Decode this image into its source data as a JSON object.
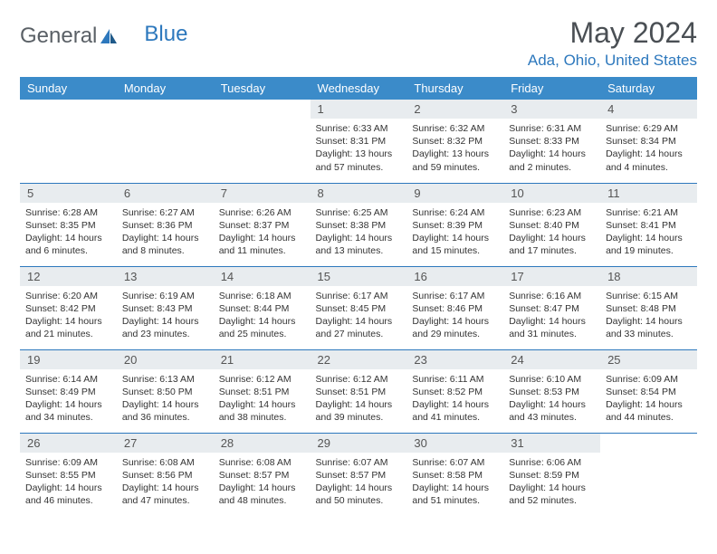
{
  "logo": {
    "text1": "General",
    "text2": "Blue"
  },
  "title": "May 2024",
  "location": "Ada, Ohio, United States",
  "colors": {
    "header_bg": "#3b8bc9",
    "accent": "#2d78bd",
    "daynum_bg": "#e8ecef",
    "text": "#333333",
    "title_text": "#4a4f54"
  },
  "weekdays": [
    "Sunday",
    "Monday",
    "Tuesday",
    "Wednesday",
    "Thursday",
    "Friday",
    "Saturday"
  ],
  "weeks": [
    [
      {
        "n": "",
        "sunrise": "",
        "sunset": "",
        "daylight": ""
      },
      {
        "n": "",
        "sunrise": "",
        "sunset": "",
        "daylight": ""
      },
      {
        "n": "",
        "sunrise": "",
        "sunset": "",
        "daylight": ""
      },
      {
        "n": "1",
        "sunrise": "Sunrise: 6:33 AM",
        "sunset": "Sunset: 8:31 PM",
        "daylight": "Daylight: 13 hours and 57 minutes."
      },
      {
        "n": "2",
        "sunrise": "Sunrise: 6:32 AM",
        "sunset": "Sunset: 8:32 PM",
        "daylight": "Daylight: 13 hours and 59 minutes."
      },
      {
        "n": "3",
        "sunrise": "Sunrise: 6:31 AM",
        "sunset": "Sunset: 8:33 PM",
        "daylight": "Daylight: 14 hours and 2 minutes."
      },
      {
        "n": "4",
        "sunrise": "Sunrise: 6:29 AM",
        "sunset": "Sunset: 8:34 PM",
        "daylight": "Daylight: 14 hours and 4 minutes."
      }
    ],
    [
      {
        "n": "5",
        "sunrise": "Sunrise: 6:28 AM",
        "sunset": "Sunset: 8:35 PM",
        "daylight": "Daylight: 14 hours and 6 minutes."
      },
      {
        "n": "6",
        "sunrise": "Sunrise: 6:27 AM",
        "sunset": "Sunset: 8:36 PM",
        "daylight": "Daylight: 14 hours and 8 minutes."
      },
      {
        "n": "7",
        "sunrise": "Sunrise: 6:26 AM",
        "sunset": "Sunset: 8:37 PM",
        "daylight": "Daylight: 14 hours and 11 minutes."
      },
      {
        "n": "8",
        "sunrise": "Sunrise: 6:25 AM",
        "sunset": "Sunset: 8:38 PM",
        "daylight": "Daylight: 14 hours and 13 minutes."
      },
      {
        "n": "9",
        "sunrise": "Sunrise: 6:24 AM",
        "sunset": "Sunset: 8:39 PM",
        "daylight": "Daylight: 14 hours and 15 minutes."
      },
      {
        "n": "10",
        "sunrise": "Sunrise: 6:23 AM",
        "sunset": "Sunset: 8:40 PM",
        "daylight": "Daylight: 14 hours and 17 minutes."
      },
      {
        "n": "11",
        "sunrise": "Sunrise: 6:21 AM",
        "sunset": "Sunset: 8:41 PM",
        "daylight": "Daylight: 14 hours and 19 minutes."
      }
    ],
    [
      {
        "n": "12",
        "sunrise": "Sunrise: 6:20 AM",
        "sunset": "Sunset: 8:42 PM",
        "daylight": "Daylight: 14 hours and 21 minutes."
      },
      {
        "n": "13",
        "sunrise": "Sunrise: 6:19 AM",
        "sunset": "Sunset: 8:43 PM",
        "daylight": "Daylight: 14 hours and 23 minutes."
      },
      {
        "n": "14",
        "sunrise": "Sunrise: 6:18 AM",
        "sunset": "Sunset: 8:44 PM",
        "daylight": "Daylight: 14 hours and 25 minutes."
      },
      {
        "n": "15",
        "sunrise": "Sunrise: 6:17 AM",
        "sunset": "Sunset: 8:45 PM",
        "daylight": "Daylight: 14 hours and 27 minutes."
      },
      {
        "n": "16",
        "sunrise": "Sunrise: 6:17 AM",
        "sunset": "Sunset: 8:46 PM",
        "daylight": "Daylight: 14 hours and 29 minutes."
      },
      {
        "n": "17",
        "sunrise": "Sunrise: 6:16 AM",
        "sunset": "Sunset: 8:47 PM",
        "daylight": "Daylight: 14 hours and 31 minutes."
      },
      {
        "n": "18",
        "sunrise": "Sunrise: 6:15 AM",
        "sunset": "Sunset: 8:48 PM",
        "daylight": "Daylight: 14 hours and 33 minutes."
      }
    ],
    [
      {
        "n": "19",
        "sunrise": "Sunrise: 6:14 AM",
        "sunset": "Sunset: 8:49 PM",
        "daylight": "Daylight: 14 hours and 34 minutes."
      },
      {
        "n": "20",
        "sunrise": "Sunrise: 6:13 AM",
        "sunset": "Sunset: 8:50 PM",
        "daylight": "Daylight: 14 hours and 36 minutes."
      },
      {
        "n": "21",
        "sunrise": "Sunrise: 6:12 AM",
        "sunset": "Sunset: 8:51 PM",
        "daylight": "Daylight: 14 hours and 38 minutes."
      },
      {
        "n": "22",
        "sunrise": "Sunrise: 6:12 AM",
        "sunset": "Sunset: 8:51 PM",
        "daylight": "Daylight: 14 hours and 39 minutes."
      },
      {
        "n": "23",
        "sunrise": "Sunrise: 6:11 AM",
        "sunset": "Sunset: 8:52 PM",
        "daylight": "Daylight: 14 hours and 41 minutes."
      },
      {
        "n": "24",
        "sunrise": "Sunrise: 6:10 AM",
        "sunset": "Sunset: 8:53 PM",
        "daylight": "Daylight: 14 hours and 43 minutes."
      },
      {
        "n": "25",
        "sunrise": "Sunrise: 6:09 AM",
        "sunset": "Sunset: 8:54 PM",
        "daylight": "Daylight: 14 hours and 44 minutes."
      }
    ],
    [
      {
        "n": "26",
        "sunrise": "Sunrise: 6:09 AM",
        "sunset": "Sunset: 8:55 PM",
        "daylight": "Daylight: 14 hours and 46 minutes."
      },
      {
        "n": "27",
        "sunrise": "Sunrise: 6:08 AM",
        "sunset": "Sunset: 8:56 PM",
        "daylight": "Daylight: 14 hours and 47 minutes."
      },
      {
        "n": "28",
        "sunrise": "Sunrise: 6:08 AM",
        "sunset": "Sunset: 8:57 PM",
        "daylight": "Daylight: 14 hours and 48 minutes."
      },
      {
        "n": "29",
        "sunrise": "Sunrise: 6:07 AM",
        "sunset": "Sunset: 8:57 PM",
        "daylight": "Daylight: 14 hours and 50 minutes."
      },
      {
        "n": "30",
        "sunrise": "Sunrise: 6:07 AM",
        "sunset": "Sunset: 8:58 PM",
        "daylight": "Daylight: 14 hours and 51 minutes."
      },
      {
        "n": "31",
        "sunrise": "Sunrise: 6:06 AM",
        "sunset": "Sunset: 8:59 PM",
        "daylight": "Daylight: 14 hours and 52 minutes."
      },
      {
        "n": "",
        "sunrise": "",
        "sunset": "",
        "daylight": ""
      }
    ]
  ]
}
